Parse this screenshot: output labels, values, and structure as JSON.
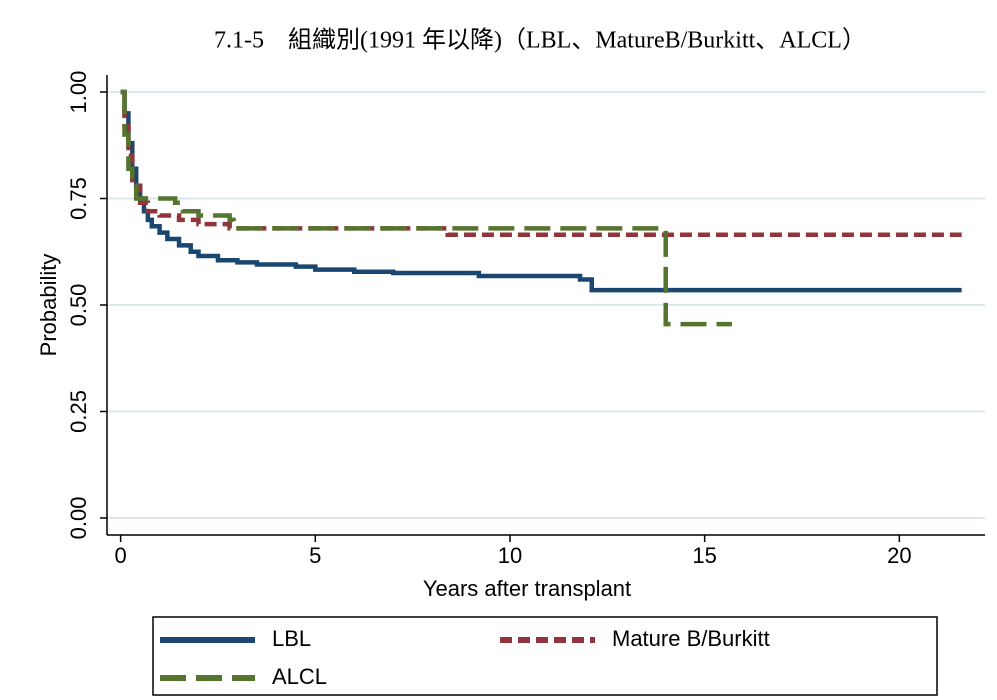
{
  "chart_data": {
    "type": "line",
    "step": true,
    "title": "7.1-5　組織別(1991 年以降)（LBL、MatureB/Burkitt、ALCL）",
    "x_label": "Years after transplant",
    "y_label": "Probability",
    "xlim": [
      -0.35,
      22.2
    ],
    "ylim": [
      -0.04,
      1.04
    ],
    "xticks": [
      0,
      5,
      10,
      15,
      20
    ],
    "yticks": [
      {
        "value": 0,
        "label": "0.00"
      },
      {
        "value": 0.25,
        "label": "0.25"
      },
      {
        "value": 0.5,
        "label": "0.50"
      },
      {
        "value": 0.75,
        "label": "0.75"
      },
      {
        "value": 1,
        "label": "1.00"
      }
    ],
    "grid": true,
    "legend": "bottom",
    "series": [
      {
        "name": "LBL",
        "color": "#1a476f",
        "dash": "solid",
        "x": [
          0,
          0.1,
          0.2,
          0.3,
          0.4,
          0.5,
          0.6,
          0.7,
          0.8,
          1.0,
          1.2,
          1.5,
          1.8,
          2.0,
          2.5,
          3.0,
          3.5,
          4.5,
          5.0,
          6.0,
          7.0,
          9.2,
          11.8,
          12.1,
          21.6
        ],
        "values": [
          1.0,
          0.95,
          0.88,
          0.82,
          0.78,
          0.75,
          0.72,
          0.7,
          0.685,
          0.67,
          0.655,
          0.64,
          0.625,
          0.615,
          0.605,
          0.6,
          0.595,
          0.59,
          0.583,
          0.578,
          0.575,
          0.568,
          0.56,
          0.535,
          0.535
        ]
      },
      {
        "name": "Mature B/Burkitt",
        "color": "#90353b",
        "dash": "short",
        "x": [
          0,
          0.1,
          0.2,
          0.3,
          0.5,
          0.7,
          1.0,
          1.5,
          2.0,
          2.8,
          8.4,
          21.6
        ],
        "values": [
          1.0,
          0.92,
          0.85,
          0.78,
          0.74,
          0.72,
          0.71,
          0.7,
          0.69,
          0.68,
          0.665,
          0.665
        ]
      },
      {
        "name": "ALCL",
        "color": "#55752f",
        "dash": "long",
        "x": [
          0,
          0.1,
          0.2,
          0.3,
          0.4,
          1.4,
          1.6,
          2.0,
          2.8,
          2.9,
          13.9,
          14.0,
          15.7
        ],
        "values": [
          1.0,
          0.9,
          0.82,
          0.78,
          0.75,
          0.74,
          0.72,
          0.71,
          0.7,
          0.68,
          0.68,
          0.455,
          0.455
        ]
      }
    ]
  }
}
